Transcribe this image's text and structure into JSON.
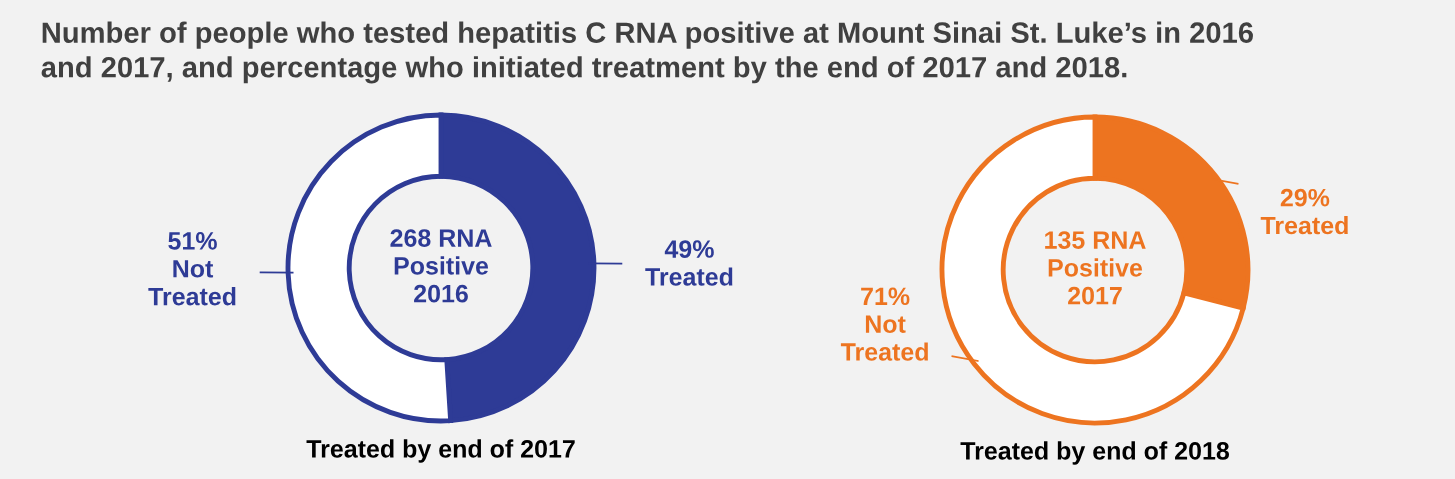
{
  "chart_data": [
    {
      "type": "donut",
      "title": "Number of people who tested hepatitis C RNA positive at Mount Sinai St. Luke’s in 2016\nand 2017, and percentage who initiated treatment by the end of 2017 and 2018.",
      "xlabel": "Treated by end of 2017",
      "annotations": [
        "268 RNA\nPositive\n2016"
      ],
      "categories": [
        "Treated",
        "Not\nTreated"
      ],
      "values": [
        49,
        51
      ],
      "value_labels": [
        "49%",
        "51%"
      ],
      "colors": [
        "#2e3b96",
        "#ffffff"
      ]
    },
    {
      "type": "donut",
      "xlabel": "Treated by end of 2018",
      "annotations": [
        "135 RNA\nPositive\n2017"
      ],
      "categories": [
        "Treated",
        "Not\nTreated"
      ],
      "values": [
        29,
        71
      ],
      "value_labels": [
        "29%",
        "71%"
      ],
      "colors": [
        "#ed7420",
        "#ffffff"
      ]
    }
  ]
}
